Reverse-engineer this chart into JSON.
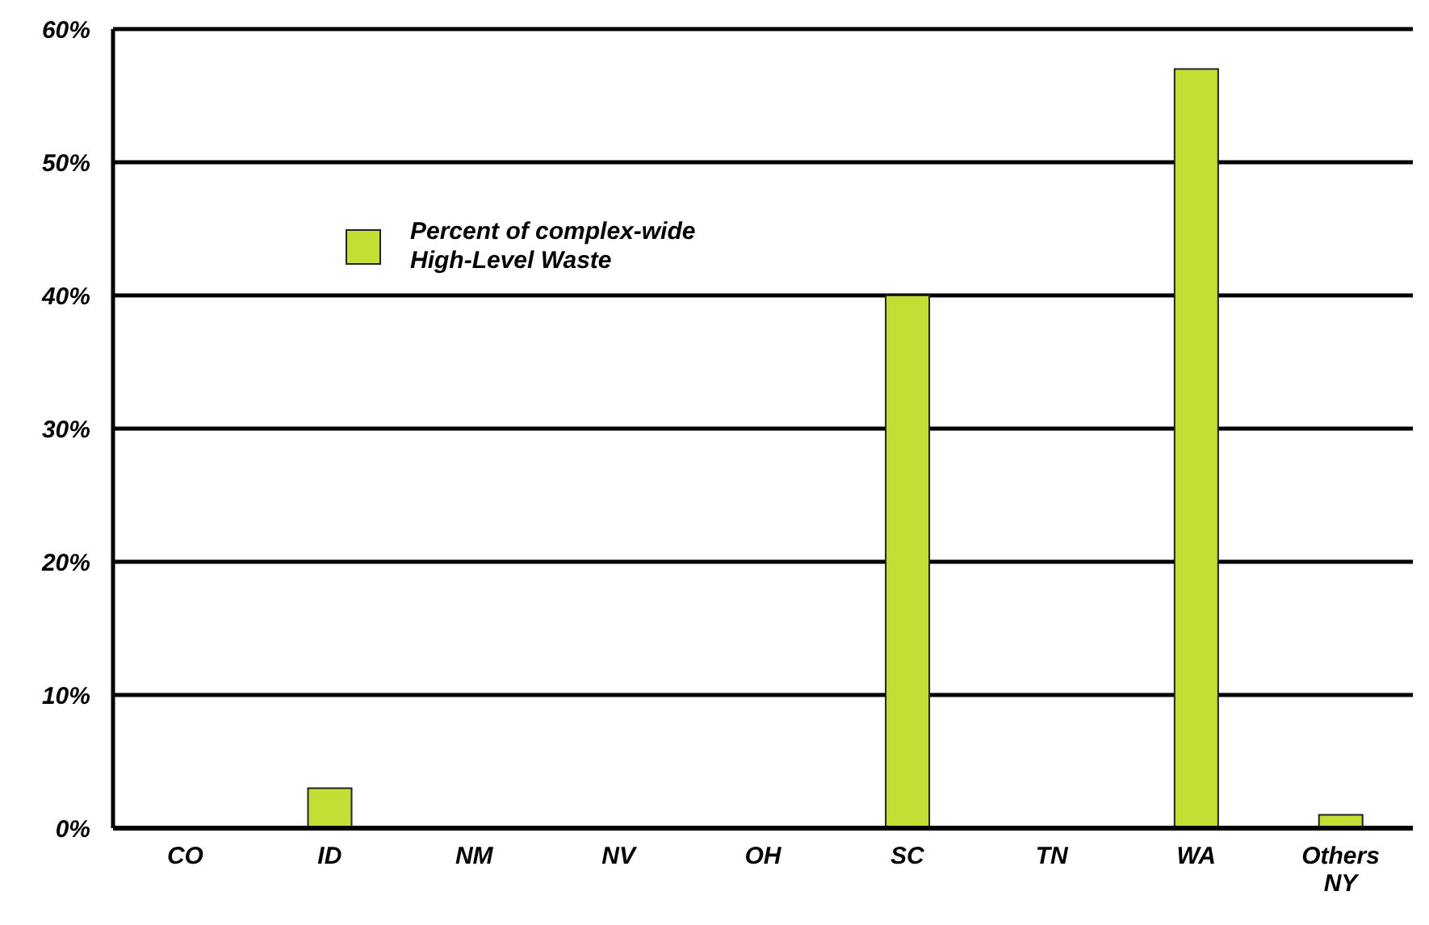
{
  "chart_data": {
    "type": "bar",
    "categories": [
      "CO",
      "ID",
      "NM",
      "NV",
      "OH",
      "SC",
      "TN",
      "WA",
      "Others\nNY"
    ],
    "series": [
      {
        "name": "Percent of complex-wide\nHigh-Level Waste",
        "color": "#c4de36",
        "values": [
          0,
          3,
          0,
          0,
          0,
          40,
          0,
          57,
          1
        ]
      }
    ],
    "ylim": [
      0,
      60
    ],
    "yticks": [
      {
        "value": 0,
        "label": "0%"
      },
      {
        "value": 10,
        "label": "10%"
      },
      {
        "value": 20,
        "label": "20%"
      },
      {
        "value": 30,
        "label": "30%"
      },
      {
        "value": 40,
        "label": "40%"
      },
      {
        "value": 50,
        "label": "50%"
      },
      {
        "value": 60,
        "label": "60%"
      }
    ],
    "grid": "y",
    "legend": "top left"
  }
}
